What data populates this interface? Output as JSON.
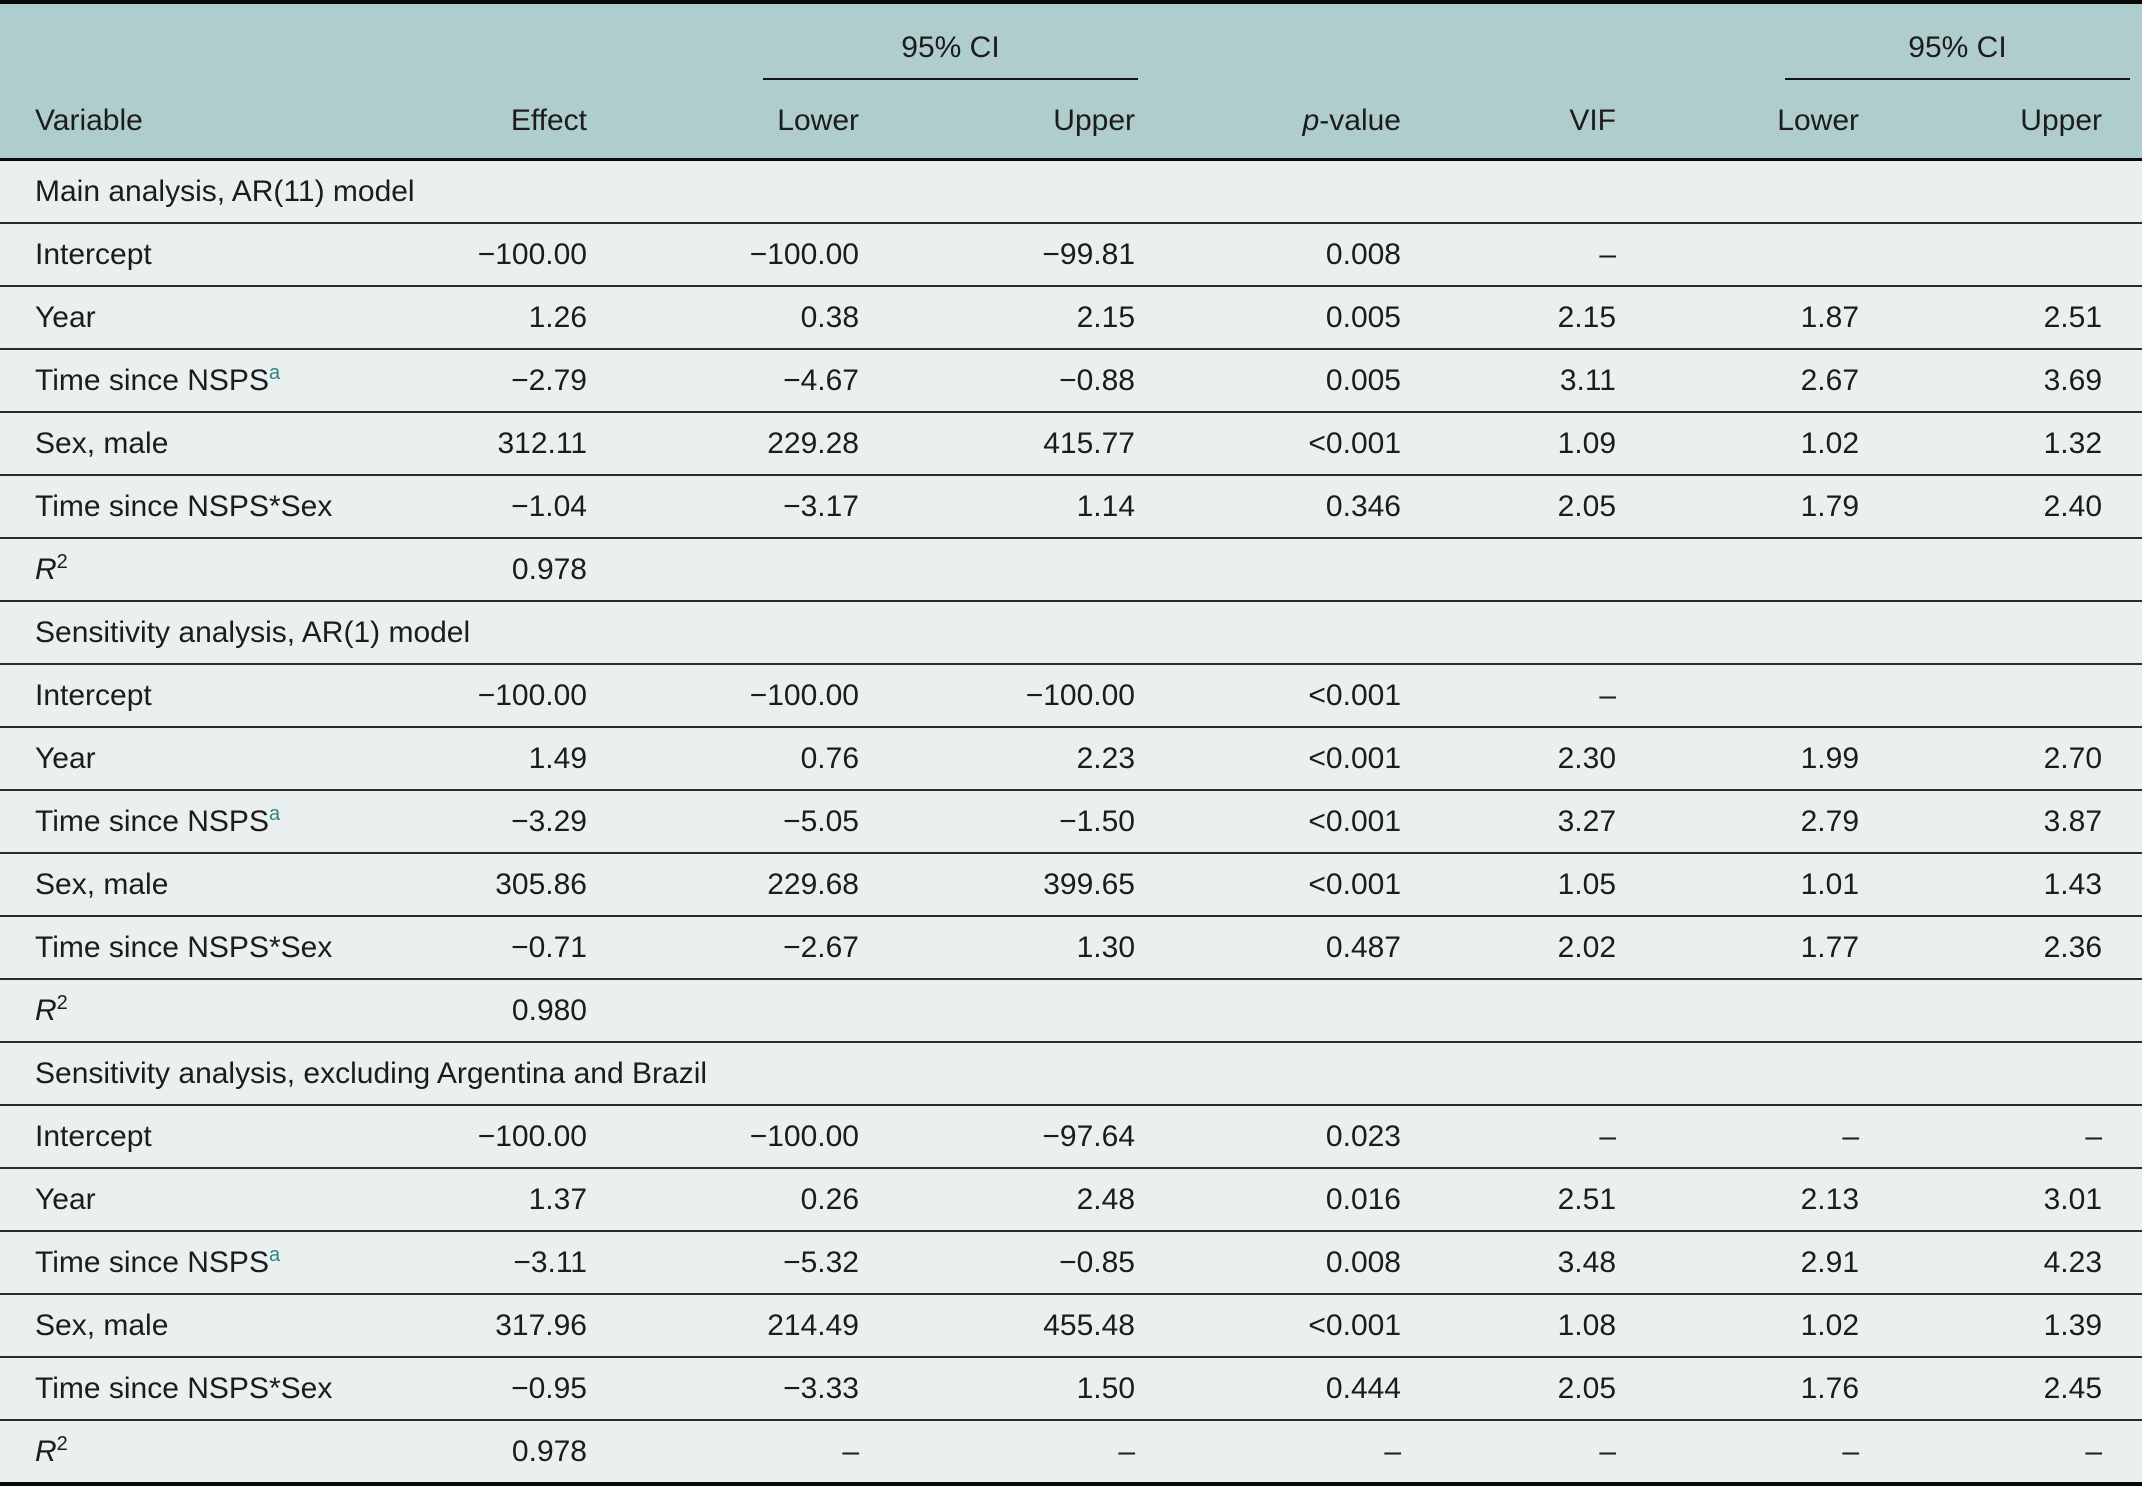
{
  "accent_color": "#2c8580",
  "header_bg_color": "#b0cdce",
  "row_bg_color": "#e9f0ef",
  "table": {
    "header": {
      "variable": "Variable",
      "effect": "Effect",
      "ci_group_1": "95% CI",
      "ci_group_2": "95% CI",
      "lower_1": "Lower",
      "upper_1": "Upper",
      "lower_2": "Lower",
      "upper_2": "Upper",
      "pvalue_p": "p",
      "pvalue_rest": "-value",
      "vif": "VIF"
    },
    "columns": [
      "Variable",
      "Effect",
      "Lower",
      "Upper",
      "p-value",
      "VIF",
      "Lower",
      "Upper"
    ],
    "sections": [
      {
        "title": "Main analysis, AR(11) model",
        "rows": [
          {
            "v": "Intercept",
            "vals": [
              "−100.00",
              "−100.00",
              "−99.81",
              "0.008",
              "–",
              "",
              ""
            ]
          },
          {
            "v": "Year",
            "vals": [
              "1.26",
              "0.38",
              "2.15",
              "0.005",
              "2.15",
              "1.87",
              "2.51"
            ]
          },
          {
            "v": "Time since NSPS",
            "sup": "a",
            "accent": true,
            "vals": [
              "−2.79",
              "−4.67",
              "−0.88",
              "0.005",
              "3.11",
              "2.67",
              "3.69"
            ]
          },
          {
            "v": "Sex, male",
            "vals": [
              "312.11",
              "229.28",
              "415.77",
              "<0.001",
              "1.09",
              "1.02",
              "1.32"
            ]
          },
          {
            "v": "Time since NSPS*Sex",
            "vals": [
              "−1.04",
              "−3.17",
              "1.14",
              "0.346",
              "2.05",
              "1.79",
              "2.40"
            ]
          },
          {
            "v": "R",
            "italic": true,
            "sup": "2",
            "accent": false,
            "vals": [
              "0.978",
              "",
              "",
              "",
              "",
              "",
              ""
            ]
          }
        ]
      },
      {
        "title": "Sensitivity analysis, AR(1) model",
        "rows": [
          {
            "v": "Intercept",
            "vals": [
              "−100.00",
              "−100.00",
              "−100.00",
              "<0.001",
              "–",
              "",
              ""
            ]
          },
          {
            "v": "Year",
            "vals": [
              "1.49",
              "0.76",
              "2.23",
              "<0.001",
              "2.30",
              "1.99",
              "2.70"
            ]
          },
          {
            "v": "Time since NSPS",
            "sup": "a",
            "accent": true,
            "vals": [
              "−3.29",
              "−5.05",
              "−1.50",
              "<0.001",
              "3.27",
              "2.79",
              "3.87"
            ]
          },
          {
            "v": "Sex, male",
            "vals": [
              "305.86",
              "229.68",
              "399.65",
              "<0.001",
              "1.05",
              "1.01",
              "1.43"
            ]
          },
          {
            "v": "Time since NSPS*Sex",
            "vals": [
              "−0.71",
              "−2.67",
              "1.30",
              "0.487",
              "2.02",
              "1.77",
              "2.36"
            ]
          },
          {
            "v": "R",
            "italic": true,
            "sup": "2",
            "accent": false,
            "vals": [
              "0.980",
              "",
              "",
              "",
              "",
              "",
              ""
            ]
          }
        ]
      },
      {
        "title": "Sensitivity analysis, excluding Argentina and Brazil",
        "rows": [
          {
            "v": "Intercept",
            "vals": [
              "−100.00",
              "−100.00",
              "−97.64",
              "0.023",
              "–",
              "–",
              "–"
            ]
          },
          {
            "v": "Year",
            "vals": [
              "1.37",
              "0.26",
              "2.48",
              "0.016",
              "2.51",
              "2.13",
              "3.01"
            ]
          },
          {
            "v": "Time since NSPS",
            "sup": "a",
            "accent": true,
            "vals": [
              "−3.11",
              "−5.32",
              "−0.85",
              "0.008",
              "3.48",
              "2.91",
              "4.23"
            ]
          },
          {
            "v": "Sex, male",
            "vals": [
              "317.96",
              "214.49",
              "455.48",
              "<0.001",
              "1.08",
              "1.02",
              "1.39"
            ]
          },
          {
            "v": "Time since NSPS*Sex",
            "vals": [
              "−0.95",
              "−3.33",
              "1.50",
              "0.444",
              "2.05",
              "1.76",
              "2.45"
            ]
          },
          {
            "v": "R",
            "italic": true,
            "sup": "2",
            "accent": false,
            "vals": [
              "0.978",
              "–",
              "–",
              "–",
              "–",
              "–",
              "–"
            ]
          }
        ]
      }
    ]
  }
}
